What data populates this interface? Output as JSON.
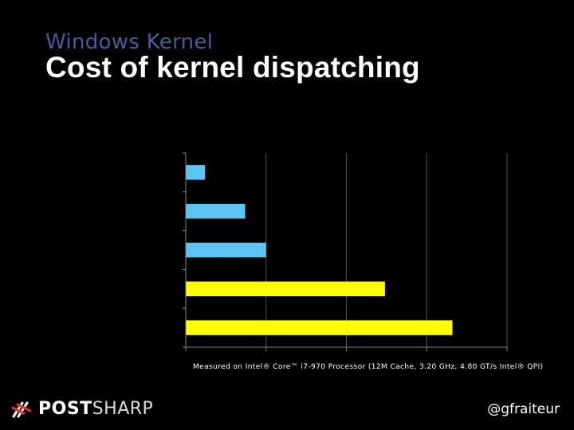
{
  "slide": {
    "kicker": "Windows Kernel",
    "title": "Cost of kernel dispatching",
    "footnote": "Measured on Intel® Core™ i7-970 Processor (12M Cache, 3.20 GHz, 4.80 GT/s Intel® QPI)",
    "handle": "@gfraiteur"
  },
  "logo": {
    "part1": "POST",
    "part2": "SHARP",
    "icon": "postsharp-logo-icon"
  },
  "chart_data": {
    "type": "bar",
    "orientation": "horizontal",
    "title": "",
    "xlabel": "",
    "ylabel": "",
    "categories": [
      "",
      "",
      "",
      "",
      ""
    ],
    "values": [
      1.2,
      3.7,
      5.0,
      12.4,
      16.6
    ],
    "bar_colors": [
      "#5bc4f0",
      "#5bc4f0",
      "#5bc4f0",
      "#ffff00",
      "#ffff00"
    ],
    "xlim": [
      0,
      20
    ],
    "x_ticks": [
      0,
      5,
      10,
      15,
      20
    ],
    "tick_labels_visible": false,
    "grid": true,
    "grid_color": "#555555",
    "axis_color": "#888888"
  }
}
